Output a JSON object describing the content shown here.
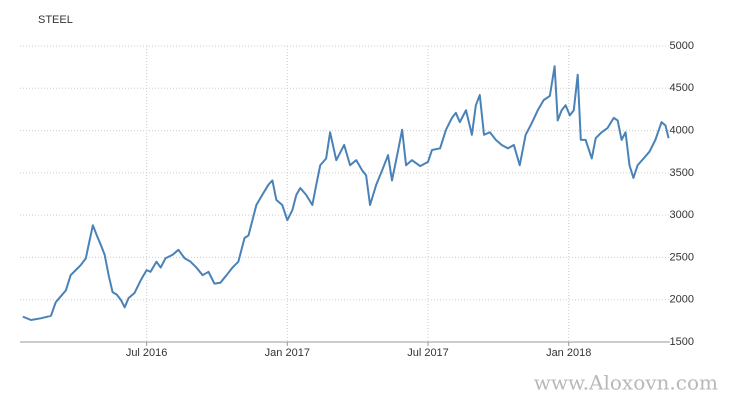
{
  "chart_data": {
    "type": "line",
    "title": "STEEL",
    "watermark": "www.Aloxovn.com",
    "x": [
      2016.06,
      2016.089,
      2016.124,
      2016.16,
      2016.177,
      2016.195,
      2016.213,
      2016.23,
      2016.248,
      2016.266,
      2016.284,
      2016.294,
      2016.309,
      2016.323,
      2016.337,
      2016.351,
      2016.365,
      2016.379,
      2016.394,
      2016.408,
      2016.422,
      2016.436,
      2016.457,
      2016.479,
      2016.5,
      2016.514,
      2016.535,
      2016.55,
      2016.567,
      2016.592,
      2016.613,
      2016.635,
      2016.656,
      2016.677,
      2016.699,
      2016.72,
      2016.741,
      2016.762,
      2016.784,
      2016.805,
      2016.826,
      2016.848,
      2016.862,
      2016.876,
      2016.89,
      2016.911,
      2016.933,
      2016.947,
      2016.961,
      2016.982,
      2017.0,
      2017.018,
      2017.032,
      2017.046,
      2017.067,
      2017.089,
      2017.103,
      2017.117,
      2017.138,
      2017.152,
      2017.174,
      2017.202,
      2017.223,
      2017.245,
      2017.266,
      2017.28,
      2017.294,
      2017.316,
      2017.337,
      2017.358,
      2017.372,
      2017.394,
      2017.408,
      2017.422,
      2017.443,
      2017.472,
      2017.5,
      2017.514,
      2017.543,
      2017.564,
      2017.585,
      2017.599,
      2017.613,
      2017.635,
      2017.656,
      2017.67,
      2017.684,
      2017.699,
      2017.72,
      2017.741,
      2017.762,
      2017.784,
      2017.805,
      2017.826,
      2017.847,
      2017.869,
      2017.89,
      2017.911,
      2017.933,
      2017.95,
      2017.961,
      2017.975,
      2017.989,
      2018.004,
      2018.018,
      2018.032,
      2018.043,
      2018.06,
      2018.082,
      2018.096,
      2018.117,
      2018.138,
      2018.16,
      2018.174,
      2018.188,
      2018.202,
      2018.216,
      2018.23,
      2018.245,
      2018.266,
      2018.287,
      2018.308,
      2018.33,
      2018.344,
      2018.355
    ],
    "series": [
      {
        "color": "#4a82b8",
        "values": [
          1800,
          1760,
          1780,
          1810,
          1970,
          2040,
          2110,
          2290,
          2350,
          2410,
          2490,
          2650,
          2880,
          2760,
          2650,
          2530,
          2290,
          2090,
          2060,
          2000,
          1910,
          2020,
          2080,
          2230,
          2350,
          2330,
          2450,
          2380,
          2490,
          2530,
          2590,
          2490,
          2450,
          2380,
          2290,
          2330,
          2190,
          2200,
          2290,
          2380,
          2450,
          2730,
          2760,
          2940,
          3120,
          3240,
          3360,
          3410,
          3180,
          3120,
          2940,
          3060,
          3240,
          3320,
          3240,
          3120,
          3360,
          3590,
          3670,
          3980,
          3650,
          3830,
          3590,
          3650,
          3530,
          3470,
          3120,
          3360,
          3530,
          3710,
          3410,
          3770,
          4010,
          3590,
          3650,
          3580,
          3630,
          3770,
          3790,
          4010,
          4150,
          4210,
          4100,
          4240,
          3950,
          4300,
          4420,
          3950,
          3980,
          3890,
          3830,
          3790,
          3830,
          3590,
          3950,
          4090,
          4240,
          4360,
          4410,
          4760,
          4120,
          4240,
          4300,
          4180,
          4240,
          4660,
          3890,
          3890,
          3670,
          3910,
          3980,
          4030,
          4150,
          4120,
          3890,
          3980,
          3590,
          3440,
          3590,
          3670,
          3750,
          3890,
          4100,
          4060,
          3910
        ]
      }
    ],
    "xlim": [
      2016.05,
      2018.36
    ],
    "xticks": [
      {
        "value": 2016.5,
        "label": "Jul 2016"
      },
      {
        "value": 2017.0,
        "label": "Jan 2017"
      },
      {
        "value": 2017.5,
        "label": "Jul 2017"
      },
      {
        "value": 2018.0,
        "label": "Jan 2018"
      }
    ],
    "ylim": [
      1500,
      5000
    ],
    "yticks": [
      1500,
      2000,
      2500,
      3000,
      3500,
      4000,
      4500,
      5000
    ],
    "grid": true
  }
}
